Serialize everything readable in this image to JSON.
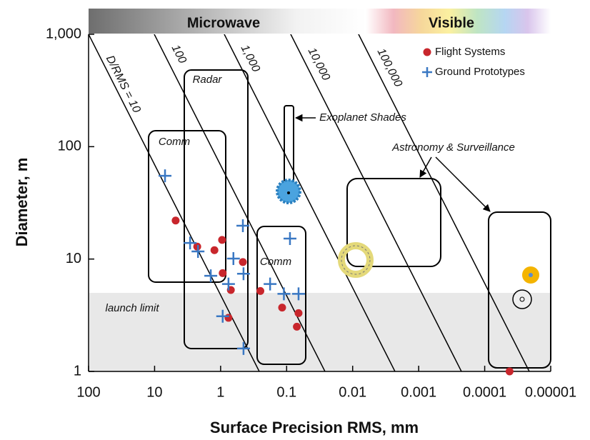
{
  "chart_data": {
    "type": "scatter",
    "xlabel": "Surface Precision RMS, mm",
    "ylabel": "Diameter, m",
    "xscale": "log",
    "yscale": "log",
    "xlim": [
      100,
      1e-05
    ],
    "ylim": [
      1,
      1000
    ],
    "xticks": [
      100,
      10,
      1,
      0.1,
      0.01,
      0.001,
      0.0001,
      1e-05
    ],
    "yticks": [
      1,
      10,
      100,
      {
        "value": 1000,
        "label": "1,000"
      }
    ],
    "legend": "upper right",
    "band_labels": [
      "Microwave",
      "Visible"
    ],
    "annotations": [
      "D/RMS = 10",
      "100",
      "1,000",
      "10,000",
      "100,000",
      "Radar",
      "Comm",
      "Comm",
      "Exoplanet Shades",
      "Astronomy & Surveillance",
      "launch limit"
    ],
    "series": [
      {
        "name": "Flight Systems",
        "color": "#c8262c",
        "marker": "circle",
        "x": [
          4.8,
          2.26,
          1.24,
          0.95,
          0.93,
          0.46,
          0.7,
          0.76,
          0.25,
          0.117,
          0.066,
          0.07,
          4.2e-05
        ],
        "values": [
          22,
          12.9,
          12,
          14.8,
          7.5,
          9.4,
          5.3,
          3,
          5.2,
          3.7,
          3.3,
          2.5,
          1
        ]
      },
      {
        "name": "Ground Prototypes",
        "color": "#3a78c3",
        "marker": "plus",
        "x": [
          6.95,
          2.9,
          2.2,
          1.41,
          0.64,
          0.46,
          0.45,
          0.76,
          0.93,
          0.45,
          0.178,
          0.11,
          0.089,
          0.066
        ],
        "values": [
          55,
          13.9,
          11.7,
          7.1,
          10.1,
          19.8,
          7.4,
          6,
          3.1,
          1.6,
          6,
          4.9,
          15.2,
          4.9
        ]
      }
    ]
  }
}
